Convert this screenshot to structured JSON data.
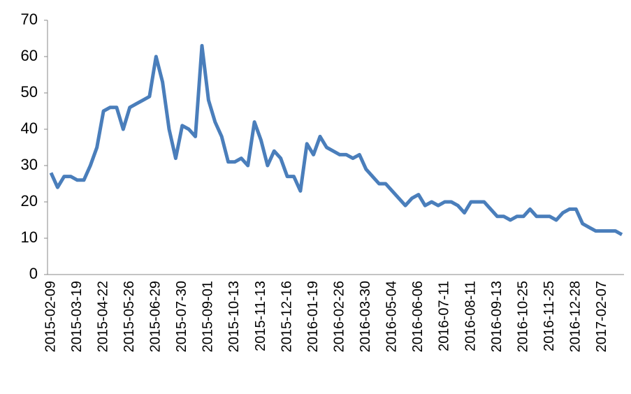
{
  "chart_data": {
    "type": "line",
    "categories": [
      "2015-02-09",
      null,
      null,
      null,
      "2015-03-19",
      null,
      null,
      null,
      "2015-04-22",
      null,
      null,
      null,
      "2015-05-26",
      null,
      null,
      null,
      "2015-06-29",
      null,
      null,
      null,
      "2015-07-30",
      null,
      null,
      null,
      "2015-09-01",
      null,
      null,
      null,
      "2015-10-13",
      null,
      null,
      null,
      "2015-11-13",
      null,
      null,
      null,
      "2015-12-16",
      null,
      null,
      null,
      "2016-01-19",
      null,
      null,
      null,
      "2016-02-26",
      null,
      null,
      null,
      "2016-03-30",
      null,
      null,
      null,
      "2016-05-04",
      null,
      null,
      null,
      "2016-06-06",
      null,
      null,
      null,
      "2016-07-11",
      null,
      null,
      null,
      "2016-08-11",
      null,
      null,
      null,
      "2016-09-13",
      null,
      null,
      null,
      "2016-10-25",
      null,
      null,
      null,
      "2016-11-25",
      null,
      null,
      null,
      "2016-12-28",
      null,
      null,
      null,
      "2017-02-07",
      null,
      null,
      null
    ],
    "series": [
      {
        "color": "#4a7ebb",
        "values": [
          28,
          24,
          27,
          27,
          26,
          26,
          30,
          35,
          45,
          46,
          46,
          40,
          46,
          47,
          48,
          49,
          60,
          53,
          40,
          32,
          41,
          40,
          38,
          63,
          48,
          42,
          38,
          31,
          31,
          32,
          30,
          42,
          37,
          30,
          34,
          32,
          27,
          27,
          23,
          36,
          33,
          38,
          35,
          34,
          33,
          33,
          32,
          33,
          29,
          27,
          25,
          25,
          23,
          21,
          19,
          21,
          22,
          19,
          20,
          19,
          20,
          20,
          19,
          17,
          20,
          20,
          20,
          18,
          16,
          16,
          15,
          16,
          16,
          18,
          16,
          16,
          16,
          15,
          17,
          18,
          18,
          14,
          13,
          12,
          12,
          12,
          12,
          11
        ]
      }
    ],
    "ylim": [
      0,
      70
    ],
    "yticks": [
      0,
      10,
      20,
      30,
      40,
      50,
      60,
      70
    ]
  }
}
